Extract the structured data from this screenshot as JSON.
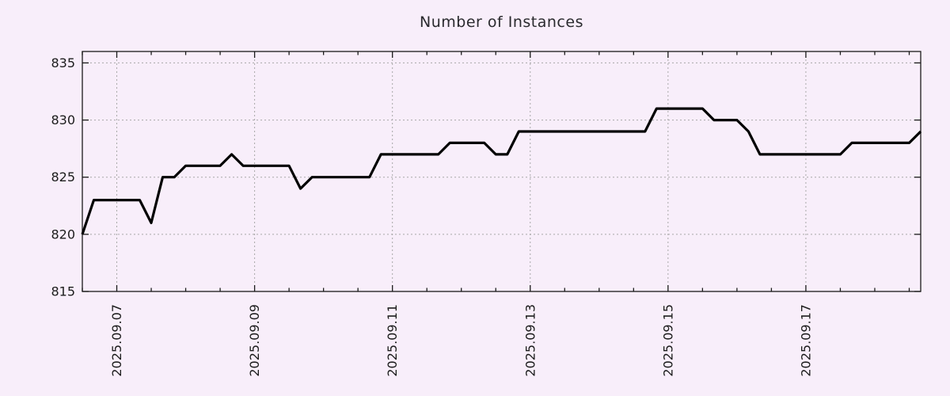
{
  "chart_data": {
    "type": "line",
    "title": "Number of Instances",
    "x_start_label": "2025.09.06 12:00",
    "x_step_hours": 4,
    "values": [
      820,
      823,
      823,
      823,
      823,
      823,
      821,
      825,
      825,
      826,
      826,
      826,
      826,
      827,
      826,
      826,
      826,
      826,
      826,
      824,
      825,
      825,
      825,
      825,
      825,
      825,
      827,
      827,
      827,
      827,
      827,
      827,
      828,
      828,
      828,
      828,
      827,
      827,
      829,
      829,
      829,
      829,
      829,
      829,
      829,
      829,
      829,
      829,
      829,
      829,
      831,
      831,
      831,
      831,
      831,
      830,
      830,
      830,
      829,
      827,
      827,
      827,
      827,
      827,
      827,
      827,
      827,
      828,
      828,
      828,
      828,
      828,
      828,
      829
    ],
    "x_tick_labels": [
      "2025.09.07",
      "2025.09.09",
      "2025.09.11",
      "2025.09.13",
      "2025.09.15",
      "2025.09.17"
    ],
    "x_tick_indices": [
      3,
      15,
      27,
      39,
      51,
      63
    ],
    "x_minor_tick_every": 3,
    "y_ticks": [
      815,
      820,
      825,
      830,
      835
    ],
    "ylim": [
      815,
      836
    ],
    "grid": true,
    "legend": "none",
    "colors": {
      "line": "#000000",
      "grid": "#a8a8a8",
      "axis": "#1a1a1a",
      "text": "#1c1c1c",
      "background": "#f8eefa"
    }
  }
}
